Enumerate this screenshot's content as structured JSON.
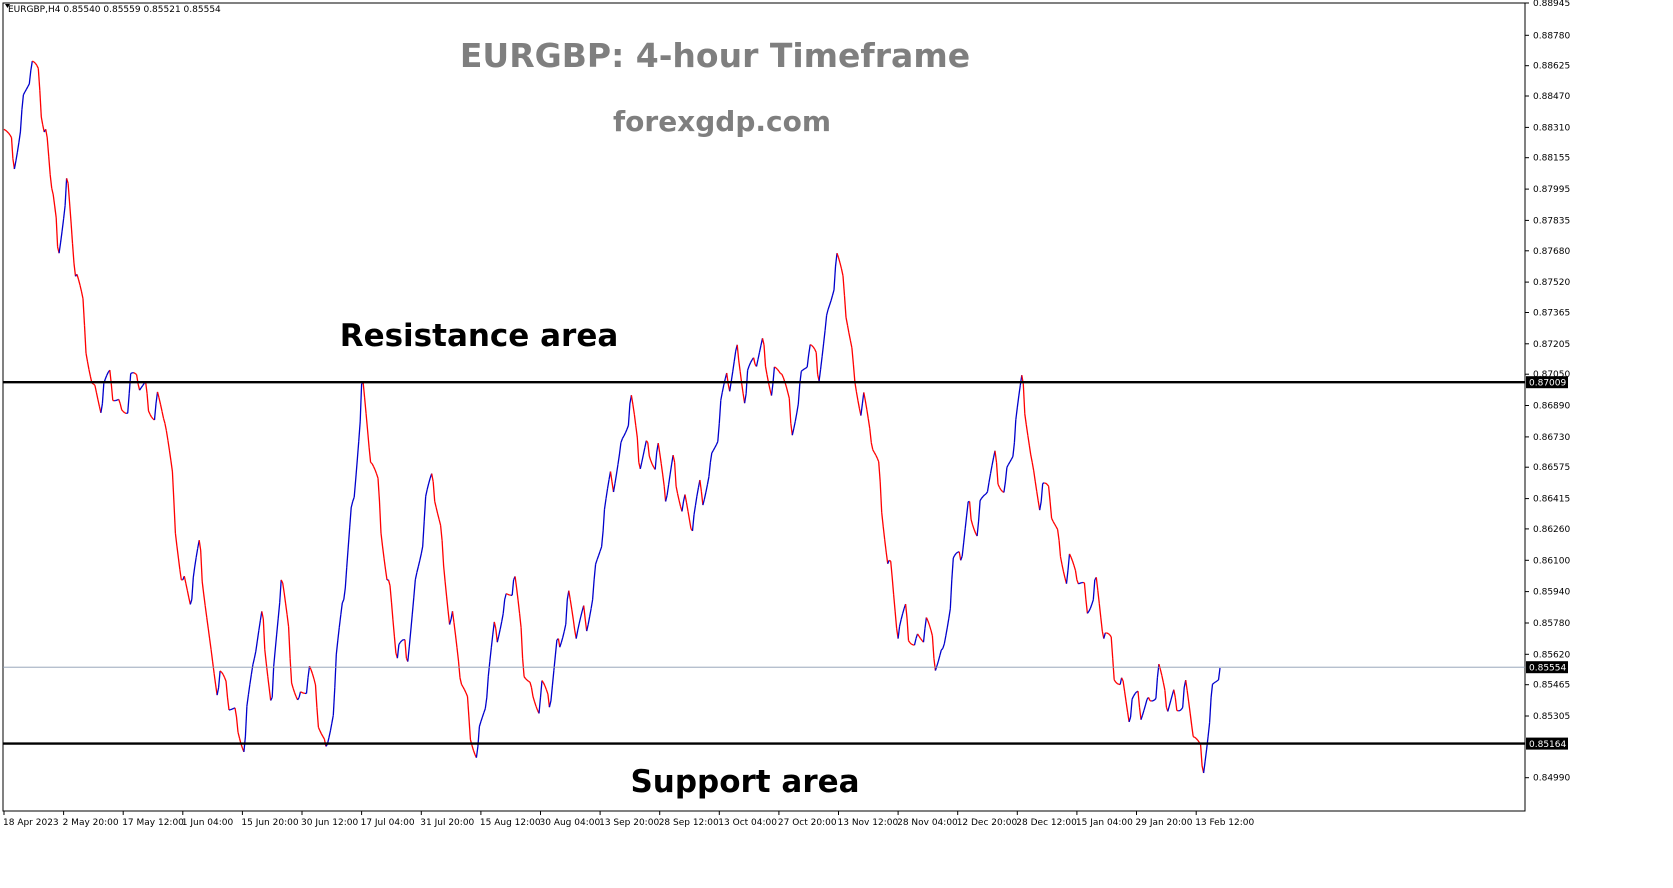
{
  "header": {
    "symbol_info": "EURGBP,H4  0.85540 0.85559 0.85521 0.85554"
  },
  "chart_data": {
    "type": "line",
    "title": "EURGBP: 4-hour Timeframe",
    "subtitle": "forexgdp.com",
    "ylim": [
      0.8482,
      0.88945
    ],
    "y_ticks": [
      0.88945,
      0.8878,
      0.88625,
      0.8847,
      0.8831,
      0.88155,
      0.87995,
      0.87835,
      0.8768,
      0.8752,
      0.87365,
      0.87205,
      0.8705,
      0.8689,
      0.8673,
      0.86575,
      0.86415,
      0.8626,
      0.861,
      0.8594,
      0.8578,
      0.8562,
      0.85465,
      0.85305,
      0.8499
    ],
    "y_tick_labels": [
      "0.88945",
      "0.88780",
      "0.88625",
      "0.88470",
      "0.88310",
      "0.88155",
      "0.87995",
      "0.87835",
      "0.87680",
      "0.87520",
      "0.87365",
      "0.87205",
      "0.87050",
      "0.86890",
      "0.86730",
      "0.86575",
      "0.86415",
      "0.86260",
      "0.86100",
      "0.85940",
      "0.85780",
      "0.85620",
      "0.85465",
      "0.85305",
      "0.84990"
    ],
    "x_tick_labels": [
      "18 Apr 2023",
      "2 May 20:00",
      "17 May 12:00",
      "1 Jun 04:00",
      "15 Jun 20:00",
      "30 Jun 12:00",
      "17 Jul 04:00",
      "31 Jul 20:00",
      "15 Aug 12:00",
      "30 Aug 04:00",
      "13 Sep 20:00",
      "28 Sep 12:00",
      "13 Oct 04:00",
      "27 Oct 20:00",
      "13 Nov 12:00",
      "28 Nov 04:00",
      "12 Dec 20:00",
      "28 Dec 12:00",
      "15 Jan 04:00",
      "29 Jan 20:00",
      "13 Feb 12:00"
    ],
    "x_tick_index": [
      0,
      20,
      40,
      60,
      80,
      100,
      120,
      140,
      160,
      180,
      200,
      220,
      240,
      260,
      280,
      300,
      320,
      340,
      360,
      380,
      400
    ],
    "series": [
      {
        "color": "#ff0000",
        "alt_color": "#0000cc",
        "points": [
          [
            0,
            0.883
          ],
          [
            3,
            0.8815
          ],
          [
            6,
            0.884
          ],
          [
            9,
            0.886
          ],
          [
            12,
            0.885
          ],
          [
            14,
            0.883
          ],
          [
            16,
            0.88
          ],
          [
            18,
            0.877
          ],
          [
            21,
            0.8805
          ],
          [
            24,
            0.8755
          ],
          [
            27,
            0.873
          ],
          [
            30,
            0.87
          ],
          [
            33,
            0.869
          ],
          [
            36,
            0.87
          ],
          [
            39,
            0.869
          ],
          [
            42,
            0.8695
          ],
          [
            45,
            0.87
          ],
          [
            48,
            0.8695
          ],
          [
            51,
            0.869
          ],
          [
            54,
            0.868
          ],
          [
            57,
            0.864
          ],
          [
            60,
            0.86
          ],
          [
            63,
            0.859
          ],
          [
            66,
            0.8615
          ],
          [
            69,
            0.857
          ],
          [
            72,
            0.8545
          ],
          [
            75,
            0.854
          ],
          [
            78,
            0.853
          ],
          [
            81,
            0.852
          ],
          [
            84,
            0.856
          ],
          [
            87,
            0.858
          ],
          [
            90,
            0.854
          ],
          [
            93,
            0.86
          ],
          [
            96,
            0.856
          ],
          [
            99,
            0.854
          ],
          [
            102,
            0.855
          ],
          [
            105,
            0.8535
          ],
          [
            108,
            0.8515
          ],
          [
            111,
            0.8545
          ],
          [
            114,
            0.859
          ],
          [
            117,
            0.864
          ],
          [
            120,
            0.87
          ],
          [
            123,
            0.866
          ],
          [
            126,
            0.864
          ],
          [
            129,
            0.86
          ],
          [
            132,
            0.856
          ],
          [
            135,
            0.856
          ],
          [
            138,
            0.86
          ],
          [
            141,
            0.863
          ],
          [
            144,
            0.865
          ],
          [
            147,
            0.862
          ],
          [
            150,
            0.858
          ],
          [
            153,
            0.855
          ],
          [
            156,
            0.853
          ],
          [
            159,
            0.8515
          ],
          [
            162,
            0.854
          ],
          [
            165,
            0.8575
          ],
          [
            168,
            0.859
          ],
          [
            171,
            0.86
          ],
          [
            174,
            0.856
          ],
          [
            177,
            0.8545
          ],
          [
            180,
            0.854
          ],
          [
            183,
            0.8535
          ],
          [
            186,
            0.857
          ],
          [
            189,
            0.859
          ],
          [
            192,
            0.857
          ],
          [
            195,
            0.858
          ],
          [
            198,
            0.86
          ],
          [
            201,
            0.8625
          ],
          [
            204,
            0.865
          ],
          [
            207,
            0.867
          ],
          [
            210,
            0.869
          ],
          [
            213,
            0.866
          ],
          [
            216,
            0.867
          ],
          [
            219,
            0.8665
          ],
          [
            222,
            0.864
          ],
          [
            225,
            0.866
          ],
          [
            228,
            0.864
          ],
          [
            231,
            0.8625
          ],
          [
            234,
            0.8645
          ],
          [
            237,
            0.866
          ],
          [
            240,
            0.868
          ],
          [
            243,
            0.87
          ],
          [
            246,
            0.872
          ],
          [
            249,
            0.8695
          ],
          [
            252,
            0.871
          ],
          [
            255,
            0.872
          ],
          [
            258,
            0.87
          ],
          [
            261,
            0.8705
          ],
          [
            264,
            0.868
          ],
          [
            267,
            0.87
          ],
          [
            270,
            0.8715
          ],
          [
            273,
            0.8705
          ],
          [
            276,
            0.8735
          ],
          [
            279,
            0.876
          ],
          [
            282,
            0.8745
          ],
          [
            285,
            0.871
          ],
          [
            288,
            0.869
          ],
          [
            291,
            0.867
          ],
          [
            294,
            0.865
          ],
          [
            297,
            0.861
          ],
          [
            300,
            0.857
          ],
          [
            303,
            0.858
          ],
          [
            306,
            0.857
          ],
          [
            309,
            0.8575
          ],
          [
            312,
            0.856
          ],
          [
            315,
            0.8565
          ],
          [
            318,
            0.86
          ],
          [
            321,
            0.861
          ],
          [
            324,
            0.864
          ],
          [
            327,
            0.863
          ],
          [
            330,
            0.8645
          ],
          [
            333,
            0.866
          ],
          [
            336,
            0.865
          ],
          [
            339,
            0.867
          ],
          [
            342,
            0.87
          ],
          [
            345,
            0.866
          ],
          [
            348,
            0.864
          ],
          [
            351,
            0.864
          ],
          [
            354,
            0.862
          ],
          [
            357,
            0.8605
          ],
          [
            360,
            0.86
          ],
          [
            363,
            0.859
          ],
          [
            366,
            0.86
          ],
          [
            369,
            0.857
          ],
          [
            372,
            0.856
          ],
          [
            375,
            0.855
          ],
          [
            378,
            0.853
          ],
          [
            381,
            0.8535
          ],
          [
            384,
            0.854
          ],
          [
            387,
            0.855
          ],
          [
            390,
            0.8535
          ],
          [
            393,
            0.854
          ],
          [
            396,
            0.8545
          ],
          [
            399,
            0.852
          ],
          [
            402,
            0.8505
          ],
          [
            405,
            0.854
          ],
          [
            408,
            0.8555
          ]
        ]
      }
    ],
    "horizontal_lines": [
      {
        "value": 0.87009,
        "label": "0.87009",
        "text": "Resistance area"
      },
      {
        "value": 0.85164,
        "label": "0.85164",
        "text": "Support area"
      },
      {
        "value": 0.85554,
        "label": "0.85554",
        "style": "thin"
      }
    ],
    "grid": false,
    "background": "#ffffff"
  }
}
